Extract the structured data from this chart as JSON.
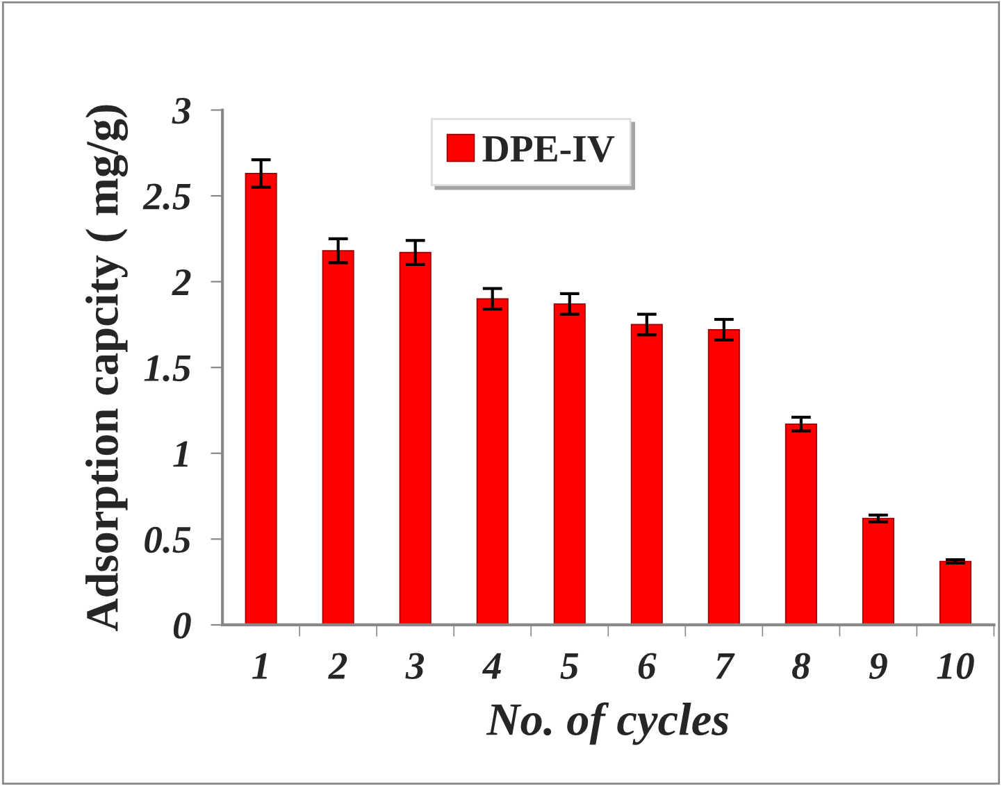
{
  "chart_data": {
    "type": "bar",
    "xlabel": "No. of cycles",
    "ylabel": "Adsorption capcity ( mg/g)",
    "categories": [
      "1",
      "2",
      "3",
      "4",
      "5",
      "6",
      "7",
      "8",
      "9",
      "10"
    ],
    "series": [
      {
        "name": "DPE-IV",
        "color": "#ff0000",
        "values": [
          2.63,
          2.18,
          2.17,
          1.9,
          1.87,
          1.75,
          1.72,
          1.17,
          0.62,
          0.37
        ],
        "errors": [
          0.08,
          0.07,
          0.07,
          0.06,
          0.06,
          0.06,
          0.06,
          0.04,
          0.02,
          0.01
        ]
      }
    ],
    "ylim": [
      0,
      3
    ],
    "yticks": [
      0,
      0.5,
      1,
      1.5,
      2,
      2.5,
      3
    ],
    "legend": "top",
    "grid": false
  }
}
